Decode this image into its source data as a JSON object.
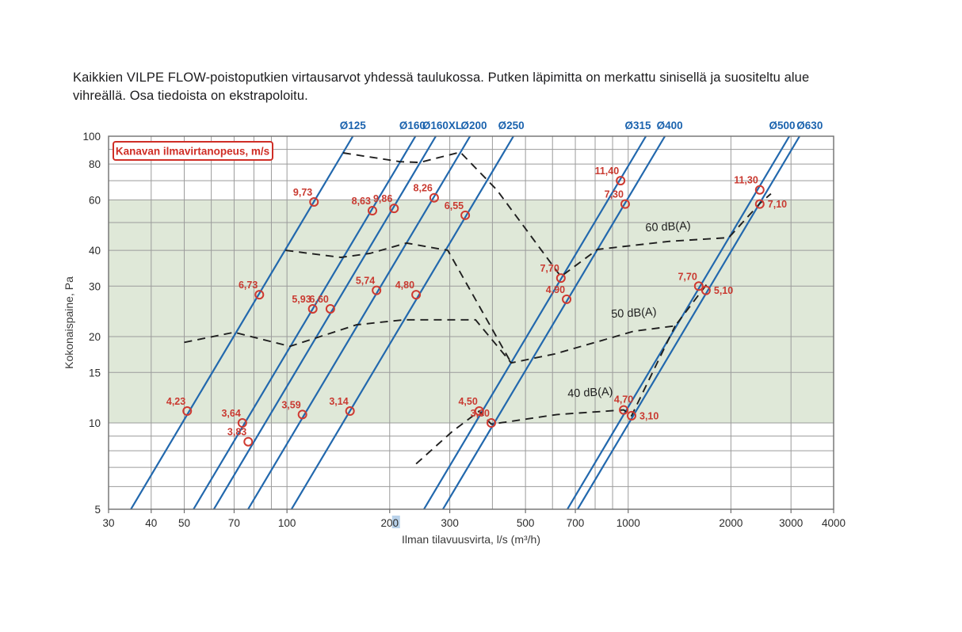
{
  "page": {
    "title": "Kaikkien VILPE FLOW-poistoputkien virtausarvot yhdessä taulukossa. Putken läpimitta on merkattu sinisellä ja suositeltu alue vihreällä. Osa tiedoista on ekstrapoloitu."
  },
  "chart_data": {
    "type": "line",
    "title": "Kaikkien VILPE FLOW-poistoputkien virtausarvot yhdessä taulukossa",
    "xlabel": "Ilman tilavuusvirta, l/s (m³/h)",
    "ylabel": "Kokonaispaine, Pa",
    "legend": "Kanavan ilmavirtanopeus, m/s",
    "legend_position": "top-left",
    "x_scale": "log",
    "y_scale": "log",
    "xlim": [
      30,
      4000
    ],
    "ylim": [
      5,
      100
    ],
    "x_ticks": [
      30,
      40,
      50,
      70,
      100,
      200,
      300,
      500,
      700,
      1000,
      2000,
      3000,
      4000
    ],
    "highlighted_x_tick": 200,
    "y_ticks": [
      5,
      10,
      15,
      20,
      30,
      40,
      60,
      80,
      100
    ],
    "x_grid": [
      30,
      40,
      50,
      60,
      70,
      80,
      90,
      100,
      200,
      300,
      400,
      500,
      600,
      700,
      800,
      900,
      1000,
      2000,
      3000,
      4000
    ],
    "y_grid": [
      5,
      6,
      7,
      8,
      9,
      10,
      15,
      20,
      30,
      40,
      50,
      60,
      70,
      80,
      90,
      100
    ],
    "grid": true,
    "recommended_area_pa": [
      10,
      60
    ],
    "colors": {
      "pipe_line": "#2268ad",
      "pipe_label": "#1b63ae",
      "marker": "#cf3a31",
      "marker_text": "#c93a31",
      "band": "#dfe8d8",
      "grid": "#9b9b9b",
      "frame": "#6f6f6f",
      "db_curve": "#1f1f1f",
      "tick_text": "#2b2b2b",
      "axis_title": "#3a3a3a",
      "tick_highlight": "#b9d2ea",
      "legend_border": "#cf2e26",
      "legend_text": "#cf2e26"
    },
    "pipe_lines": [
      {
        "label": "Ø125",
        "q_at_100pa": 156,
        "label_q": 156
      },
      {
        "label": "Ø160",
        "q_at_100pa": 238,
        "label_q": 233
      },
      {
        "label": "Ø160XL",
        "q_at_100pa": 273,
        "label_q": 285
      },
      {
        "label": "Ø200",
        "q_at_100pa": 344,
        "label_q": 353
      },
      {
        "label": "Ø250",
        "q_at_100pa": 461,
        "label_q": 454
      },
      {
        "label": "Ø315",
        "q_at_100pa": 1127,
        "label_q": 1068
      },
      {
        "label": "Ø400",
        "q_at_100pa": 1281,
        "label_q": 1323
      },
      {
        "label": "Ø500",
        "q_at_100pa": 2967,
        "label_q": 2825
      },
      {
        "label": "Ø630",
        "q_at_100pa": 3179,
        "label_q": 3404
      }
    ],
    "velocity_points": [
      {
        "v": "9,73",
        "q": 120,
        "pa": 59,
        "side": "tl"
      },
      {
        "v": "8,63",
        "q": 178,
        "pa": 55,
        "side": "tl"
      },
      {
        "v": "9,86",
        "q": 206,
        "pa": 56,
        "side": "tl"
      },
      {
        "v": "8,26",
        "q": 270,
        "pa": 61,
        "side": "tl"
      },
      {
        "v": "6,55",
        "q": 333,
        "pa": 53,
        "side": "tl"
      },
      {
        "v": "11,40",
        "q": 950,
        "pa": 70,
        "side": "tl"
      },
      {
        "v": "7,30",
        "q": 980,
        "pa": 58,
        "side": "tl"
      },
      {
        "v": "11,30",
        "q": 2430,
        "pa": 65,
        "side": "tl"
      },
      {
        "v": "7,10",
        "q": 2430,
        "pa": 58,
        "side": "r"
      },
      {
        "v": "6,73",
        "q": 83,
        "pa": 28,
        "side": "tl"
      },
      {
        "v": "5,93",
        "q": 119,
        "pa": 25,
        "side": "tl"
      },
      {
        "v": "6,60",
        "q": 134,
        "pa": 25,
        "side": "tl"
      },
      {
        "v": "5,74",
        "q": 183,
        "pa": 29,
        "side": "tl"
      },
      {
        "v": "4,80",
        "q": 239,
        "pa": 28,
        "side": "tl"
      },
      {
        "v": "7,70",
        "q": 635,
        "pa": 32,
        "side": "tl"
      },
      {
        "v": "4,90",
        "q": 660,
        "pa": 27,
        "side": "tl"
      },
      {
        "v": "7,70",
        "q": 1610,
        "pa": 30,
        "side": "tl"
      },
      {
        "v": "5,10",
        "q": 1690,
        "pa": 29,
        "side": "r"
      },
      {
        "v": "4,23",
        "q": 51,
        "pa": 11,
        "side": "tl"
      },
      {
        "v": "3,64",
        "q": 74,
        "pa": 10,
        "side": "tl"
      },
      {
        "v": "3,83",
        "q": 77,
        "pa": 8.6,
        "side": "tl"
      },
      {
        "v": "3,59",
        "q": 111,
        "pa": 10.7,
        "side": "tl"
      },
      {
        "v": "3,14",
        "q": 153,
        "pa": 11,
        "side": "tl"
      },
      {
        "v": "4,50",
        "q": 366,
        "pa": 11,
        "side": "tl"
      },
      {
        "v": "3,00",
        "q": 397,
        "pa": 10,
        "side": "tl"
      },
      {
        "v": "4,70",
        "q": 970,
        "pa": 11.1,
        "side": "t"
      },
      {
        "v": "3,10",
        "q": 1023,
        "pa": 10.6,
        "side": "r"
      }
    ],
    "db_curves": [
      {
        "label": "60 dB(A)",
        "label_at": {
          "q": 1310,
          "pa": 47,
          "rotate": -3
        },
        "points": [
          [
            146,
            87.5
          ],
          [
            215,
            81.5
          ],
          [
            245,
            81
          ],
          [
            322,
            88
          ],
          [
            412,
            65
          ],
          [
            635,
            32.4
          ],
          [
            813,
            40.3
          ],
          [
            1323,
            43
          ],
          [
            1973,
            44.3
          ],
          [
            2433,
            58.3
          ],
          [
            2620,
            63
          ]
        ]
      },
      {
        "label": "50 dB(A)",
        "label_at": {
          "q": 1040,
          "pa": 23.5,
          "rotate": -3
        },
        "points": [
          [
            50,
            19.1
          ],
          [
            70,
            20.7
          ],
          [
            102,
            18.5
          ],
          [
            160,
            22
          ],
          [
            220,
            22.9
          ],
          [
            357,
            22.9
          ],
          [
            454,
            16.2
          ],
          [
            609,
            17.4
          ],
          [
            839,
            19.4
          ],
          [
            1040,
            20.9
          ],
          [
            1373,
            21.8
          ],
          [
            1726,
            31.2
          ]
        ]
      },
      {
        "label": "40 dB(A)",
        "label_at": {
          "q": 775,
          "pa": 12.4,
          "rotate": -3
        },
        "points": [
          [
            239,
            7.2
          ],
          [
            304,
            9.3
          ],
          [
            366,
            11
          ],
          [
            397,
            9.9
          ],
          [
            619,
            10.7
          ],
          [
            970,
            11.1
          ],
          [
            1023,
            10.6
          ],
          [
            1373,
            21.8
          ]
        ]
      },
      {
        "label": "",
        "label_at": null,
        "points": [
          [
            99,
            40
          ],
          [
            144,
            37.8
          ],
          [
            175,
            39
          ],
          [
            224,
            42.4
          ],
          [
            296,
            40
          ],
          [
            454,
            16.2
          ]
        ]
      }
    ]
  }
}
